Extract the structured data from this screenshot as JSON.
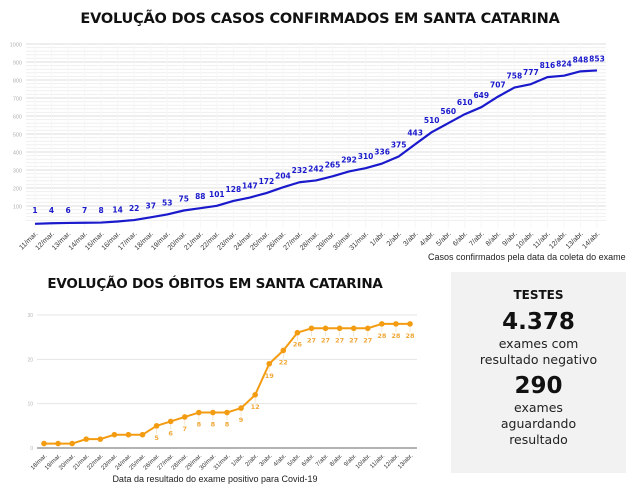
{
  "chart_data": [
    {
      "type": "line",
      "title": "EVOLUÇÃO DOS CASOS CONFIRMADOS EM SANTA CATARINA",
      "xlabel": "Casos confirmados pela data da coleta do exame",
      "ylabel": "",
      "ylim": [
        0,
        1000
      ],
      "yticks": [
        100,
        200,
        300,
        400,
        500,
        600,
        700,
        800,
        900,
        1000
      ],
      "grid": true,
      "color": "#1a1acc",
      "categories": [
        "11/mar.",
        "12/mar.",
        "13/mar.",
        "14/mar.",
        "15/mar.",
        "16/mar.",
        "17/mar.",
        "18/mar.",
        "19/mar.",
        "20/mar.",
        "21/mar.",
        "22/mar.",
        "23/mar.",
        "24/mar.",
        "25/mar.",
        "26/mar.",
        "27/mar.",
        "28/mar.",
        "29/mar.",
        "30/mar.",
        "31/mar.",
        "1/abr.",
        "2/abr.",
        "3/abr.",
        "4/abr.",
        "5/abr.",
        "6/abr.",
        "7/abr.",
        "8/abr.",
        "9/abr.",
        "10/abr.",
        "11/abr.",
        "12/abr.",
        "13/abr.",
        "14/abr."
      ],
      "series": [
        {
          "name": "Casos confirmados",
          "values": [
            1,
            4,
            6,
            7,
            8,
            14,
            22,
            37,
            53,
            75,
            88,
            101,
            128,
            147,
            172,
            204,
            232,
            242,
            265,
            292,
            310,
            336,
            375,
            443,
            510,
            560,
            610,
            649,
            707,
            758,
            777,
            816,
            824,
            848,
            853
          ]
        }
      ]
    },
    {
      "type": "line",
      "title": "EVOLUÇÃO DOS ÓBITOS EM SANTA CATARINA",
      "xlabel": "Data da resultado do exame positivo para Covid-19",
      "ylabel": "",
      "ylim": [
        0,
        30
      ],
      "yticks": [
        0,
        10,
        20,
        30
      ],
      "grid": true,
      "color": "#f39c12",
      "categories": [
        "18/mar.",
        "19/mar.",
        "20/mar.",
        "21/mar.",
        "22/mar.",
        "23/mar.",
        "24/mar.",
        "25/mar.",
        "26/mar.",
        "27/mar.",
        "28/mar.",
        "29/mar.",
        "30/mar.",
        "31/mar.",
        "1/abr.",
        "2/abr.",
        "3/abr.",
        "4/abr.",
        "5/abr.",
        "6/abr.",
        "7/abr.",
        "8/abr.",
        "9/abr.",
        "10/abr.",
        "11/abr.",
        "12/abr.",
        "13/abr."
      ],
      "series": [
        {
          "name": "Óbitos",
          "values": [
            1,
            1,
            1,
            2,
            2,
            3,
            3,
            3,
            5,
            6,
            7,
            8,
            8,
            8,
            9,
            12,
            19,
            22,
            26,
            27,
            27,
            27,
            27,
            27,
            28,
            28,
            28
          ]
        }
      ],
      "data_labels_start_index": 8
    }
  ],
  "testes": {
    "heading": "TESTES",
    "negative_count": "4.378",
    "negative_label_1": "exames com",
    "negative_label_2": "resultado negativo",
    "pending_count": "290",
    "pending_label_1": "exames",
    "pending_label_2": "aguardando",
    "pending_label_3": "resultado"
  }
}
